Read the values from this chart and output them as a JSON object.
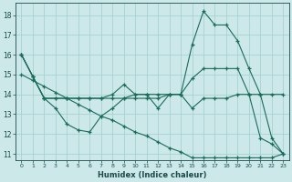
{
  "xlabel": "Humidex (Indice chaleur)",
  "bg_color": "#cce8e8",
  "grid_color": "#9fcfcf",
  "line_color": "#1a6b5a",
  "x_ticks": [
    0,
    1,
    2,
    3,
    4,
    5,
    6,
    7,
    8,
    9,
    10,
    11,
    12,
    13,
    14,
    15,
    16,
    17,
    18,
    19,
    20,
    21,
    22,
    23
  ],
  "y_ticks": [
    11,
    12,
    13,
    14,
    15,
    16,
    17,
    18
  ],
  "xlim": [
    -0.5,
    23.5
  ],
  "ylim": [
    10.7,
    18.6
  ],
  "series": [
    [
      16.0,
      14.9,
      13.8,
      13.3,
      12.5,
      12.2,
      12.1,
      12.9,
      13.3,
      13.8,
      14.0,
      14.0,
      13.3,
      14.0,
      14.0,
      13.3,
      13.8,
      13.8,
      13.8,
      14.0,
      14.0,
      11.8,
      11.5,
      11.0
    ],
    [
      16.0,
      14.9,
      13.8,
      13.8,
      13.8,
      13.8,
      13.8,
      13.8,
      13.8,
      13.8,
      13.8,
      13.8,
      13.8,
      14.0,
      14.0,
      14.8,
      15.3,
      15.3,
      15.3,
      15.3,
      14.0,
      14.0,
      14.0,
      14.0
    ],
    [
      16.0,
      14.9,
      13.8,
      13.8,
      13.8,
      13.8,
      13.8,
      13.8,
      14.0,
      14.5,
      14.0,
      14.0,
      14.0,
      14.0,
      14.0,
      16.5,
      18.2,
      17.5,
      17.5,
      16.7,
      15.3,
      14.0,
      11.8,
      11.0
    ],
    [
      15.0,
      14.7,
      14.4,
      14.1,
      13.8,
      13.5,
      13.2,
      12.9,
      12.7,
      12.4,
      12.1,
      11.9,
      11.6,
      11.3,
      11.1,
      10.8,
      10.8,
      10.8,
      10.8,
      10.8,
      10.8,
      10.8,
      10.8,
      11.0
    ]
  ]
}
